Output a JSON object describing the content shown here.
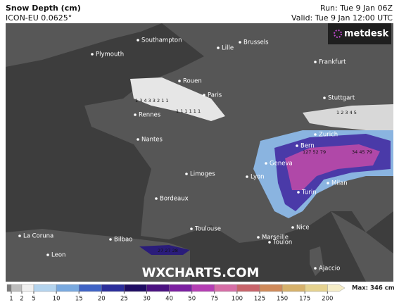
{
  "header": {
    "title": "Snow Depth (cm)",
    "model": "ICON-EU 0.0625°",
    "run": "Run: Tue 9 Jan 06Z",
    "valid": "Valid: Tue 9 Jan 12:00 UTC"
  },
  "logo": "metdesk",
  "watermark": "WXCHARTS.COM",
  "cities": [
    "Southampton",
    "Brussels",
    "Plymouth",
    "Lille",
    "Frankfurt",
    "Rouen",
    "Paris",
    "Stuttgart",
    "Rennes",
    "Zurich",
    "Nantes",
    "Bern",
    "Geneva",
    "Limoges",
    "Lyon",
    "Milan",
    "Turin",
    "Bordeaux",
    "Toulouse",
    "Nice",
    "La Coruna",
    "Bilbao",
    "Marseille",
    "Toulon",
    "Leon",
    "Ajaccio"
  ],
  "snow_labels": [
    "1 3 4 3 3 2 1 1",
    "1 1 1 1 1 1",
    "1 2 3 4 5",
    "27 27 28",
    "127 52 79",
    "34 45 79"
  ],
  "colorbar": {
    "ticks": [
      1,
      2,
      5,
      10,
      15,
      20,
      25,
      30,
      40,
      50,
      75,
      100,
      125,
      150,
      175,
      200
    ],
    "colors": [
      "#7a7a7a",
      "#bdbdbd",
      "#efefef",
      "#b4d4ee",
      "#79a9df",
      "#3f63c5",
      "#2a2d9a",
      "#1e0c62",
      "#4a1180",
      "#7b1fa0",
      "#b43eb3",
      "#d66ea6",
      "#c8646b",
      "#cf8a5a",
      "#d6b16b",
      "#e5d28f",
      "#f5edc8"
    ],
    "max": "Max: 346 cm"
  }
}
